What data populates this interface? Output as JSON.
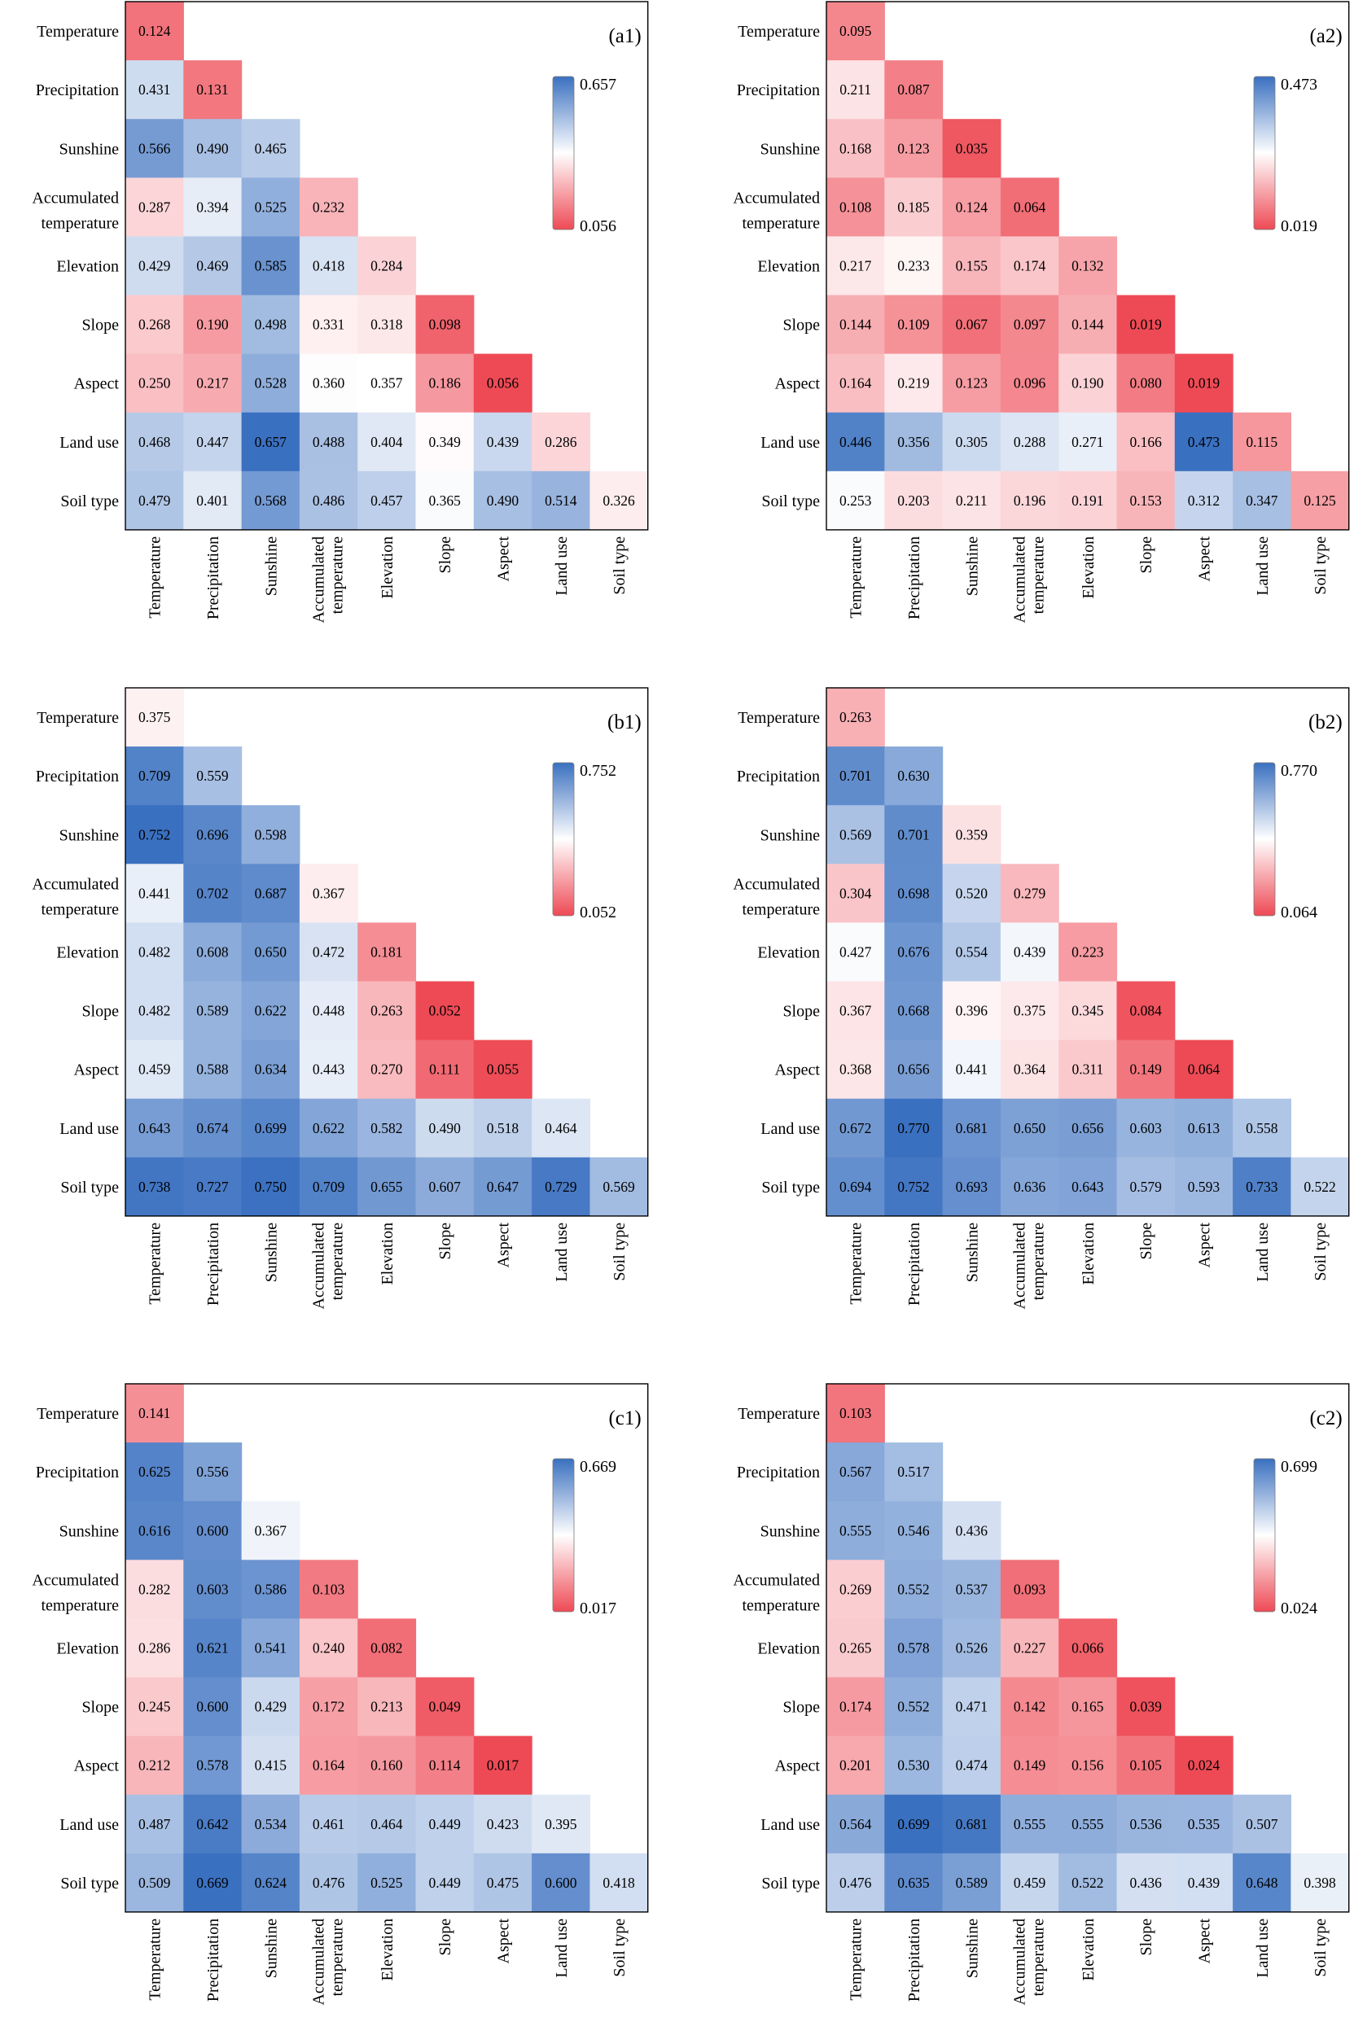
{
  "variables": [
    "Temperature",
    "Precipitation",
    "Sunshine",
    "Accumulated temperature",
    "Elevation",
    "Slope",
    "Aspect",
    "Land use",
    "Soil type"
  ],
  "colors": {
    "low": "#ee4a55",
    "mid": "#ffffff",
    "high": "#3a70c0",
    "frame": "#000000"
  },
  "chart_data": [
    {
      "type": "heatmap",
      "panel": "(a1)",
      "legend": {
        "max": "0.657",
        "min": "0.056"
      },
      "vmin": 0.056,
      "vmax": 0.657,
      "rows": [
        [
          "0.124"
        ],
        [
          "0.431",
          "0.131"
        ],
        [
          "0.566",
          "0.490",
          "0.465"
        ],
        [
          "0.287",
          "0.394",
          "0.525",
          "0.232"
        ],
        [
          "0.429",
          "0.469",
          "0.585",
          "0.418",
          "0.284"
        ],
        [
          "0.268",
          "0.190",
          "0.498",
          "0.331",
          "0.318",
          "0.098"
        ],
        [
          "0.250",
          "0.217",
          "0.528",
          "0.360",
          "0.357",
          "0.186",
          "0.056"
        ],
        [
          "0.468",
          "0.447",
          "0.657",
          "0.488",
          "0.404",
          "0.349",
          "0.439",
          "0.286"
        ],
        [
          "0.479",
          "0.401",
          "0.568",
          "0.486",
          "0.457",
          "0.365",
          "0.490",
          "0.514",
          "0.326"
        ]
      ]
    },
    {
      "type": "heatmap",
      "panel": "(a2)",
      "legend": {
        "max": "0.473",
        "min": "0.019"
      },
      "vmin": 0.019,
      "vmax": 0.473,
      "rows": [
        [
          "0.095"
        ],
        [
          "0.211",
          "0.087"
        ],
        [
          "0.168",
          "0.123",
          "0.035"
        ],
        [
          "0.108",
          "0.185",
          "0.124",
          "0.064"
        ],
        [
          "0.217",
          "0.233",
          "0.155",
          "0.174",
          "0.132"
        ],
        [
          "0.144",
          "0.109",
          "0.067",
          "0.097",
          "0.144",
          "0.019"
        ],
        [
          "0.164",
          "0.219",
          "0.123",
          "0.096",
          "0.190",
          "0.080",
          "0.019"
        ],
        [
          "0.446",
          "0.356",
          "0.305",
          "0.288",
          "0.271",
          "0.166",
          "0.473",
          "0.115"
        ],
        [
          "0.253",
          "0.203",
          "0.211",
          "0.196",
          "0.191",
          "0.153",
          "0.312",
          "0.347",
          "0.125"
        ]
      ]
    },
    {
      "type": "heatmap",
      "panel": "(b1)",
      "legend": {
        "max": "0.752",
        "min": "0.052"
      },
      "vmin": 0.052,
      "vmax": 0.752,
      "rows": [
        [
          "0.375"
        ],
        [
          "0.709",
          "0.559"
        ],
        [
          "0.752",
          "0.696",
          "0.598"
        ],
        [
          "0.441",
          "0.702",
          "0.687",
          "0.367"
        ],
        [
          "0.482",
          "0.608",
          "0.650",
          "0.472",
          "0.181"
        ],
        [
          "0.482",
          "0.589",
          "0.622",
          "0.448",
          "0.263",
          "0.052"
        ],
        [
          "0.459",
          "0.588",
          "0.634",
          "0.443",
          "0.270",
          "0.111",
          "0.055"
        ],
        [
          "0.643",
          "0.674",
          "0.699",
          "0.622",
          "0.582",
          "0.490",
          "0.518",
          "0.464"
        ],
        [
          "0.738",
          "0.727",
          "0.750",
          "0.709",
          "0.655",
          "0.607",
          "0.647",
          "0.729",
          "0.569"
        ]
      ]
    },
    {
      "type": "heatmap",
      "panel": "(b2)",
      "legend": {
        "max": "0.770",
        "min": "0.064"
      },
      "vmin": 0.064,
      "vmax": 0.77,
      "rows": [
        [
          "0.263"
        ],
        [
          "0.701",
          "0.630"
        ],
        [
          "0.569",
          "0.701",
          "0.359"
        ],
        [
          "0.304",
          "0.698",
          "0.520",
          "0.279"
        ],
        [
          "0.427",
          "0.676",
          "0.554",
          "0.439",
          "0.223"
        ],
        [
          "0.367",
          "0.668",
          "0.396",
          "0.375",
          "0.345",
          "0.084"
        ],
        [
          "0.368",
          "0.656",
          "0.441",
          "0.364",
          "0.311",
          "0.149",
          "0.064"
        ],
        [
          "0.672",
          "0.770",
          "0.681",
          "0.650",
          "0.656",
          "0.603",
          "0.613",
          "0.558"
        ],
        [
          "0.694",
          "0.752",
          "0.693",
          "0.636",
          "0.643",
          "0.579",
          "0.593",
          "0.733",
          "0.522"
        ]
      ]
    },
    {
      "type": "heatmap",
      "panel": "(c1)",
      "legend": {
        "max": "0.669",
        "min": "0.017"
      },
      "vmin": 0.017,
      "vmax": 0.669,
      "rows": [
        [
          "0.141"
        ],
        [
          "0.625",
          "0.556"
        ],
        [
          "0.616",
          "0.600",
          "0.367"
        ],
        [
          "0.282",
          "0.603",
          "0.586",
          "0.103"
        ],
        [
          "0.286",
          "0.621",
          "0.541",
          "0.240",
          "0.082"
        ],
        [
          "0.245",
          "0.600",
          "0.429",
          "0.172",
          "0.213",
          "0.049"
        ],
        [
          "0.212",
          "0.578",
          "0.415",
          "0.164",
          "0.160",
          "0.114",
          "0.017"
        ],
        [
          "0.487",
          "0.642",
          "0.534",
          "0.461",
          "0.464",
          "0.449",
          "0.423",
          "0.395"
        ],
        [
          "0.509",
          "0.669",
          "0.624",
          "0.476",
          "0.525",
          "0.449",
          "0.475",
          "0.600",
          "0.418"
        ]
      ]
    },
    {
      "type": "heatmap",
      "panel": "(c2)",
      "legend": {
        "max": "0.699",
        "min": "0.024"
      },
      "vmin": 0.024,
      "vmax": 0.699,
      "rows": [
        [
          "0.103"
        ],
        [
          "0.567",
          "0.517"
        ],
        [
          "0.555",
          "0.546",
          "0.436"
        ],
        [
          "0.269",
          "0.552",
          "0.537",
          "0.093"
        ],
        [
          "0.265",
          "0.578",
          "0.526",
          "0.227",
          "0.066"
        ],
        [
          "0.174",
          "0.552",
          "0.471",
          "0.142",
          "0.165",
          "0.039"
        ],
        [
          "0.201",
          "0.530",
          "0.474",
          "0.149",
          "0.156",
          "0.105",
          "0.024"
        ],
        [
          "0.564",
          "0.699",
          "0.681",
          "0.555",
          "0.555",
          "0.536",
          "0.535",
          "0.507"
        ],
        [
          "0.476",
          "0.635",
          "0.589",
          "0.459",
          "0.522",
          "0.436",
          "0.439",
          "0.648",
          "0.398"
        ]
      ]
    }
  ]
}
